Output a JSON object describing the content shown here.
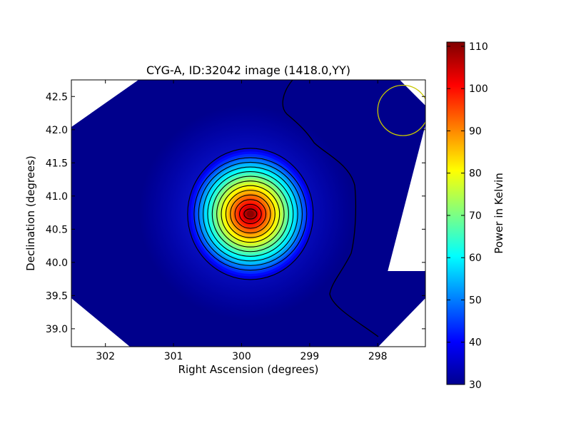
{
  "chart_data": {
    "type": "heatmap",
    "title": "CYG-A, ID:32042 image (1418.0,YY)",
    "xlabel": "Right Ascension (degrees)",
    "ylabel": "Declination (degrees)",
    "xlim": [
      302.5,
      297.3
    ],
    "ylim": [
      38.73,
      42.75
    ],
    "x_ticks": [
      302,
      301,
      300,
      299,
      298
    ],
    "x_tick_labels": [
      "302",
      "301",
      "300",
      "299",
      "298"
    ],
    "y_ticks": [
      39.0,
      39.5,
      40.0,
      40.5,
      41.0,
      41.5,
      42.0,
      42.5
    ],
    "y_tick_labels": [
      "39.0",
      "39.5",
      "40.0",
      "40.5",
      "41.0",
      "41.5",
      "42.0",
      "42.5"
    ],
    "colorbar": {
      "label": "Power in Kelvin",
      "range": [
        30,
        111
      ],
      "ticks": [
        30,
        40,
        50,
        60,
        70,
        80,
        90,
        100,
        110
      ],
      "tick_labels": [
        "30",
        "40",
        "50",
        "60",
        "70",
        "80",
        "90",
        "100",
        "110"
      ],
      "colormap": "jet"
    },
    "source": {
      "ra": 299.87,
      "dec": 40.73,
      "peak_kelvin": 110,
      "background_kelvin": 33
    },
    "contour_count": 13,
    "beam_marker": {
      "ra": 297.63,
      "dec": 42.29,
      "radius_deg": 0.37,
      "color": "#c8c800"
    },
    "grid": false
  }
}
